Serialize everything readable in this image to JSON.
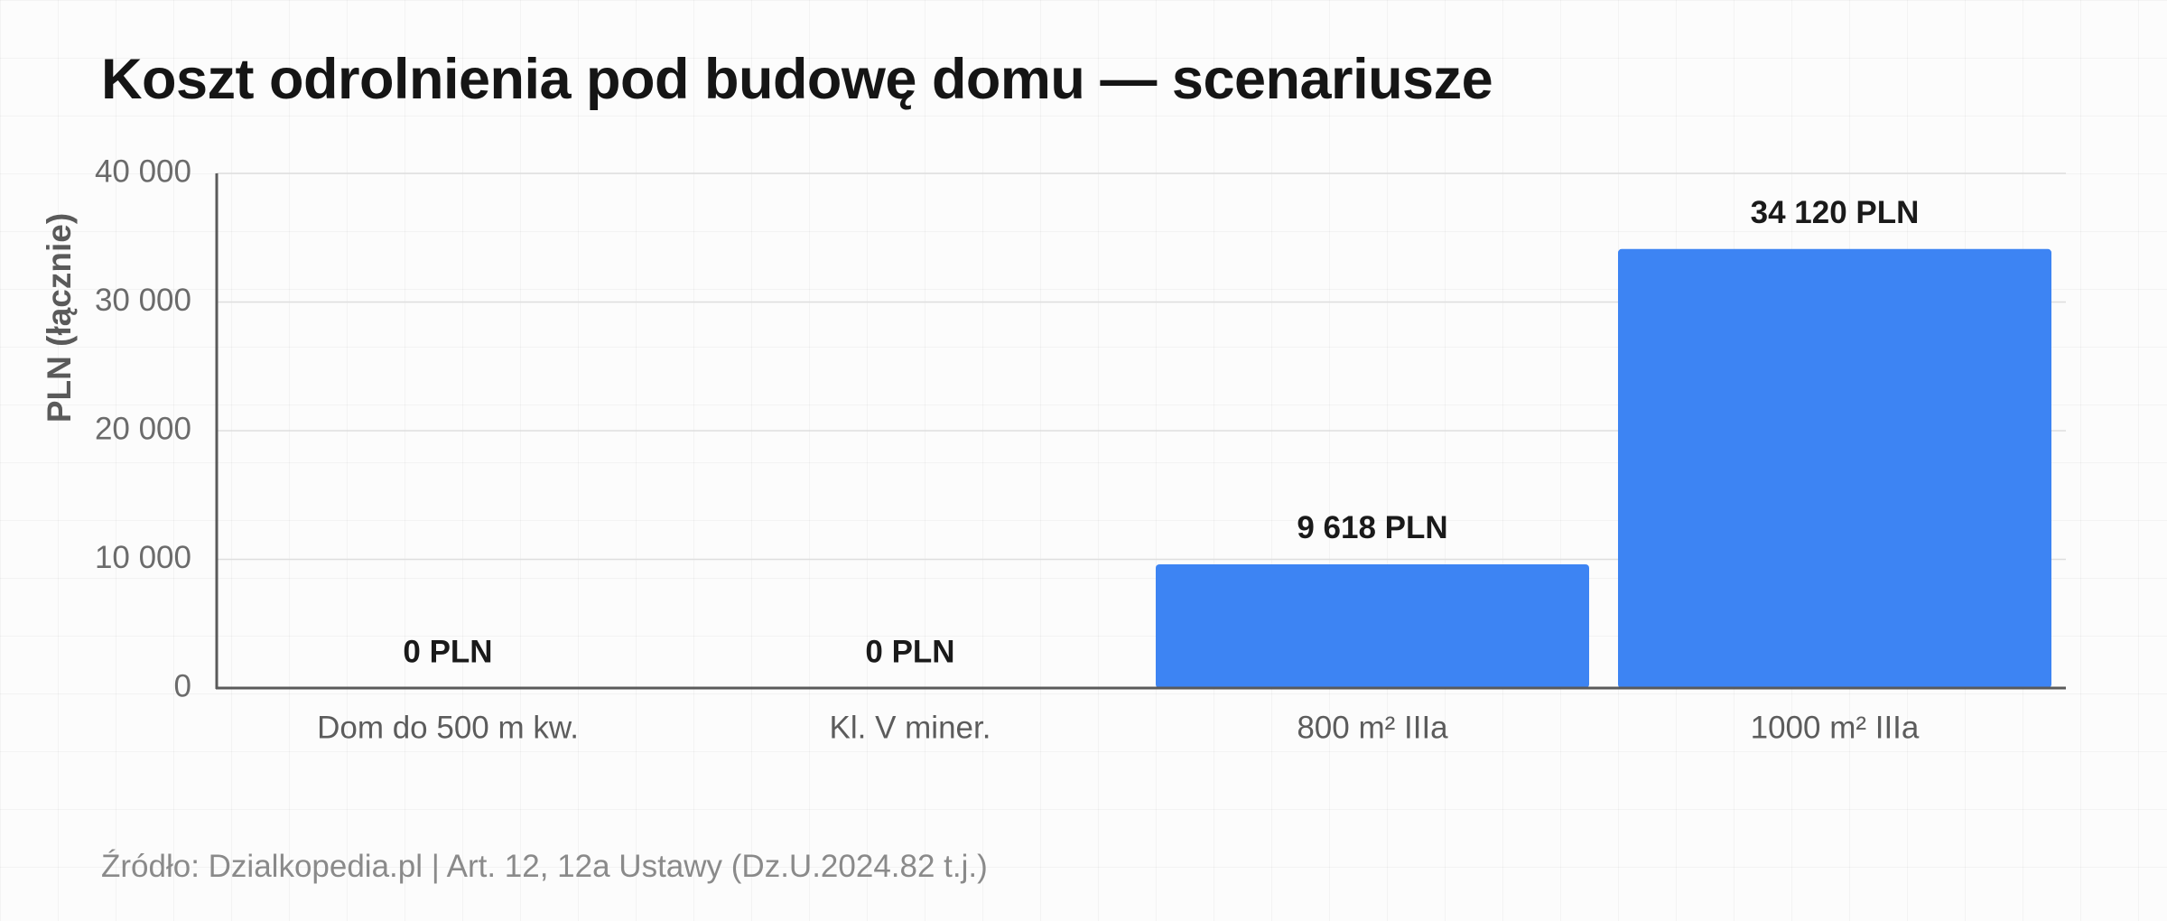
{
  "title": "Koszt odrolnienia pod budowę domu — scenariusze",
  "footer": "Źródło: Dzialkopedia.pl | Art. 12, 12a Ustawy (Dz.U.2024.82 t.j.)",
  "colors": {
    "bar": "#3d84f3"
  },
  "chart_data": {
    "type": "bar",
    "categories": [
      "Dom do 500 m kw.",
      "Kl. V miner.",
      "800 m² IIIa",
      "1000 m² IIIa"
    ],
    "values": [
      0,
      0,
      9618,
      34120
    ],
    "value_labels": [
      "0 PLN",
      "0 PLN",
      "9 618 PLN",
      "34 120 PLN"
    ],
    "title": "Koszt odrolnienia pod budowę domu — scenariusze",
    "xlabel": "",
    "ylabel": "PLN (łącznie)",
    "ylim": [
      0,
      40000
    ],
    "yticks": [
      0,
      10000,
      20000,
      30000,
      40000
    ],
    "ytick_labels": [
      "0",
      "10 000",
      "20 000",
      "30 000",
      "40 000"
    ],
    "grid": true,
    "legend": false
  }
}
